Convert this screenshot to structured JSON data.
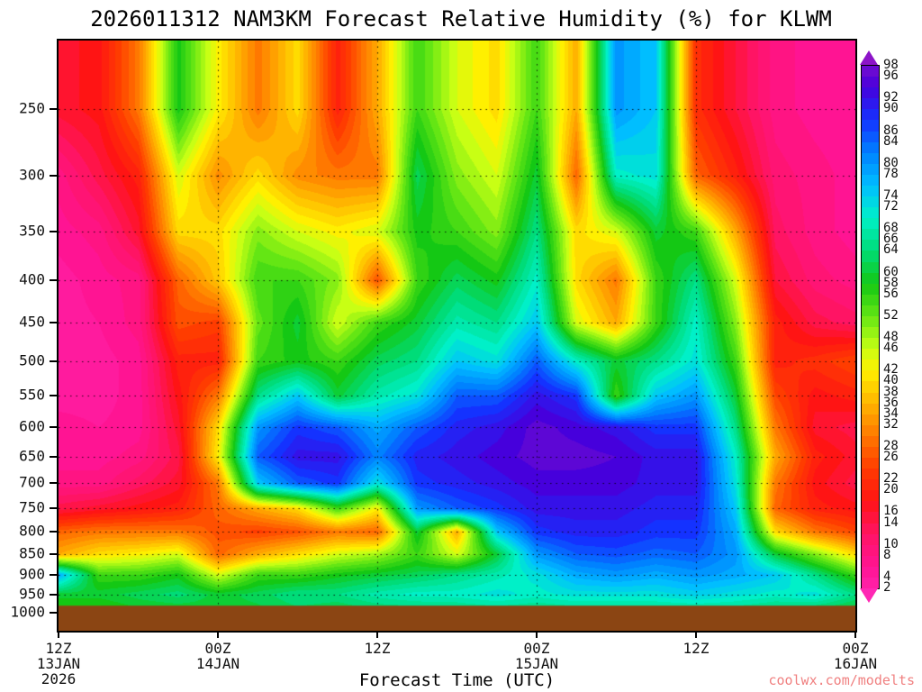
{
  "title": "2026011312 NAM3KM Forecast Relative Humidity (%) for KLWM",
  "x_axis_title": "Forecast Time (UTC)",
  "watermark": "coolwx.com/modelts",
  "colors": {
    "background": "#FFFFFF",
    "axis": "#000000",
    "terrain": "#8B4513",
    "watermark": "#F08080",
    "grid_dots": "rgba(0,0,0,0.85)"
  },
  "y_axis": {
    "tick_labels": [
      "250",
      "300",
      "350",
      "400",
      "450",
      "500",
      "550",
      "600",
      "650",
      "700",
      "750",
      "800",
      "850",
      "900",
      "950",
      "1000"
    ]
  },
  "x_axis": {
    "ticks": [
      {
        "hour": 0,
        "lines": [
          "12Z",
          "13JAN",
          "2026"
        ]
      },
      {
        "hour": 12,
        "lines": [
          "00Z",
          "14JAN"
        ]
      },
      {
        "hour": 24,
        "lines": [
          "12Z"
        ]
      },
      {
        "hour": 36,
        "lines": [
          "00Z",
          "15JAN"
        ]
      },
      {
        "hour": 48,
        "lines": [
          "12Z"
        ]
      },
      {
        "hour": 60,
        "lines": [
          "00Z",
          "16JAN"
        ]
      }
    ]
  },
  "colorbar": {
    "min": 2,
    "max": 98,
    "step": 2,
    "labels": [
      "98",
      "96",
      "92",
      "90",
      "86",
      "84",
      "80",
      "78",
      "74",
      "72",
      "68",
      "66",
      "64",
      "60",
      "58",
      "56",
      "52",
      "48",
      "46",
      "42",
      "40",
      "38",
      "36",
      "34",
      "32",
      "28",
      "26",
      "22",
      "20",
      "16",
      "14",
      "10",
      "8",
      "4",
      "2"
    ]
  },
  "chart_data": {
    "type": "heatmap",
    "title": "2026011312 NAM3KM Forecast Relative Humidity (%) for KLWM",
    "xlabel": "Forecast Time (UTC)",
    "x_hours": [
      0,
      3,
      6,
      9,
      12,
      15,
      18,
      21,
      24,
      27,
      30,
      33,
      36,
      39,
      42,
      45,
      48,
      51,
      54,
      57,
      60
    ],
    "x_range_hours": [
      0,
      60
    ],
    "pressure_levels": [
      250,
      300,
      350,
      400,
      450,
      500,
      550,
      600,
      650,
      700,
      750,
      800,
      850,
      900,
      950,
      1000
    ],
    "y_scale": "log-pressure",
    "terrain_top_pressure": 980,
    "rh_percent_grid": [
      [
        16,
        18,
        30,
        58,
        42,
        30,
        40,
        20,
        35,
        55,
        45,
        40,
        55,
        35,
        80,
        75,
        22,
        15,
        8,
        6,
        5
      ],
      [
        8,
        14,
        20,
        45,
        32,
        40,
        32,
        30,
        30,
        62,
        50,
        45,
        60,
        28,
        70,
        72,
        28,
        20,
        10,
        8,
        6
      ],
      [
        6,
        8,
        16,
        40,
        40,
        50,
        45,
        42,
        45,
        58,
        55,
        50,
        65,
        40,
        45,
        60,
        55,
        35,
        12,
        8,
        6
      ],
      [
        4,
        6,
        8,
        28,
        38,
        55,
        55,
        50,
        26,
        55,
        62,
        58,
        70,
        40,
        30,
        55,
        65,
        45,
        15,
        10,
        8
      ],
      [
        4,
        5,
        8,
        26,
        24,
        52,
        60,
        45,
        55,
        60,
        68,
        65,
        75,
        45,
        35,
        55,
        70,
        50,
        20,
        14,
        12
      ],
      [
        4,
        4,
        6,
        20,
        20,
        55,
        58,
        55,
        62,
        65,
        75,
        72,
        85,
        70,
        60,
        65,
        72,
        55,
        20,
        22,
        25
      ],
      [
        4,
        4,
        6,
        18,
        30,
        65,
        75,
        60,
        68,
        72,
        85,
        85,
        92,
        88,
        55,
        75,
        80,
        60,
        25,
        18,
        20
      ],
      [
        6,
        5,
        6,
        16,
        40,
        80,
        88,
        85,
        78,
        85,
        90,
        92,
        96,
        94,
        92,
        88,
        88,
        65,
        30,
        16,
        14
      ],
      [
        6,
        6,
        8,
        14,
        42,
        85,
        92,
        92,
        82,
        90,
        92,
        94,
        96,
        96,
        95,
        92,
        92,
        70,
        35,
        20,
        16
      ],
      [
        8,
        8,
        12,
        16,
        30,
        75,
        85,
        88,
        72,
        88,
        90,
        92,
        94,
        94,
        94,
        92,
        92,
        72,
        30,
        18,
        14
      ],
      [
        14,
        16,
        18,
        20,
        28,
        35,
        40,
        55,
        42,
        80,
        85,
        88,
        92,
        92,
        92,
        90,
        90,
        75,
        28,
        20,
        18
      ],
      [
        28,
        30,
        30,
        30,
        26,
        24,
        26,
        30,
        28,
        60,
        35,
        75,
        88,
        90,
        90,
        88,
        88,
        78,
        40,
        30,
        25
      ],
      [
        35,
        40,
        42,
        45,
        28,
        35,
        40,
        45,
        48,
        55,
        45,
        60,
        80,
        85,
        86,
        84,
        85,
        80,
        60,
        50,
        40
      ],
      [
        78,
        55,
        55,
        58,
        45,
        55,
        55,
        58,
        60,
        62,
        65,
        68,
        72,
        78,
        80,
        78,
        80,
        78,
        75,
        65,
        55
      ],
      [
        60,
        60,
        62,
        64,
        60,
        62,
        65,
        65,
        68,
        70,
        70,
        72,
        70,
        72,
        72,
        72,
        74,
        72,
        70,
        72,
        65
      ],
      [
        55,
        55,
        58,
        58,
        60,
        60,
        62,
        60,
        62,
        62,
        63,
        64,
        63,
        64,
        64,
        64,
        64,
        64,
        62,
        60,
        58
      ]
    ],
    "colormap_stops": [
      [
        0,
        "#FF28B4"
      ],
      [
        6,
        "#FF1493"
      ],
      [
        12,
        "#FF1464"
      ],
      [
        18,
        "#FF1414"
      ],
      [
        24,
        "#FF3C00"
      ],
      [
        30,
        "#FF7800"
      ],
      [
        36,
        "#FFB400"
      ],
      [
        42,
        "#FFF000"
      ],
      [
        46,
        "#C8FF14"
      ],
      [
        52,
        "#64E614"
      ],
      [
        58,
        "#14C814"
      ],
      [
        64,
        "#00DC78"
      ],
      [
        70,
        "#00F0C8"
      ],
      [
        76,
        "#00BEFF"
      ],
      [
        82,
        "#0082FF"
      ],
      [
        88,
        "#1432FF"
      ],
      [
        94,
        "#4600DC"
      ],
      [
        100,
        "#8C14C8"
      ]
    ]
  }
}
